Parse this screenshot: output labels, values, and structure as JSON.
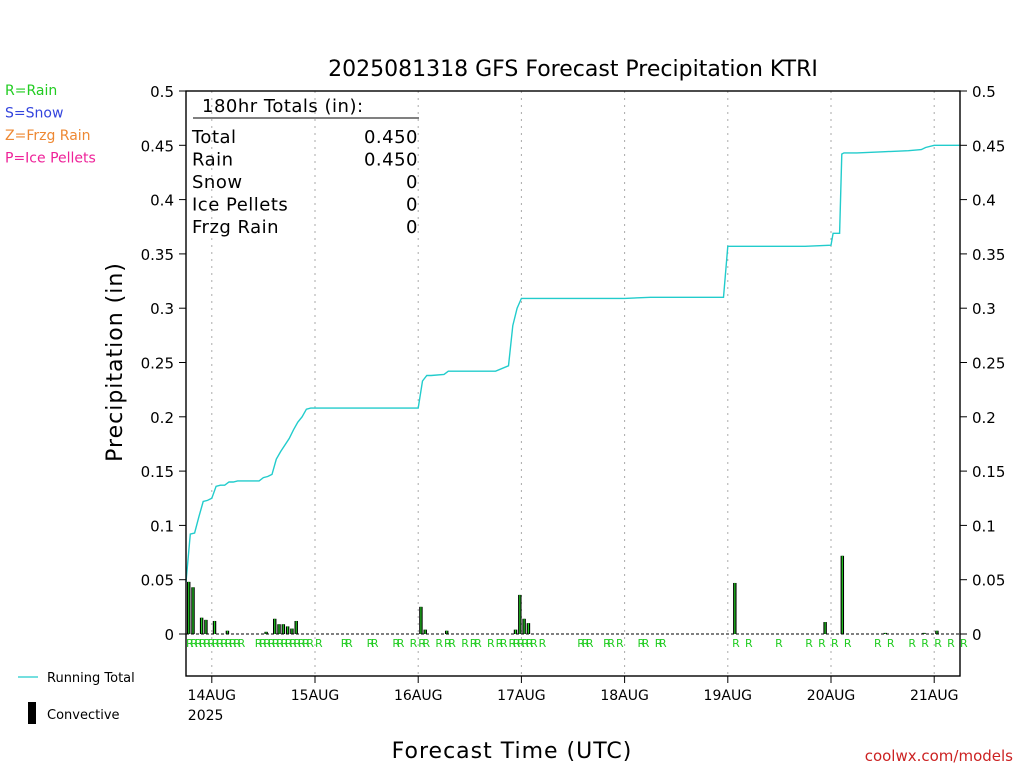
{
  "chart_data": {
    "type": "bar",
    "title": "2025081318 GFS Forecast Precipitation KTRI",
    "ylabel": "Precipitation (in)",
    "xlabel": "Forecast Time (UTC)",
    "ylim": [
      0,
      0.5
    ],
    "yticks": [
      "0",
      "0.05",
      "0.1",
      "0.15",
      "0.2",
      "0.25",
      "0.3",
      "0.35",
      "0.4",
      "0.45",
      "0.5"
    ],
    "x_unit": "forecast hour",
    "xlim": [
      0,
      180
    ],
    "xticks": [
      {
        "hour": 6,
        "label": "14AUG",
        "sub": "2025"
      },
      {
        "hour": 30,
        "label": "15AUG"
      },
      {
        "hour": 54,
        "label": "16AUG"
      },
      {
        "hour": 78,
        "label": "17AUG"
      },
      {
        "hour": 102,
        "label": "18AUG"
      },
      {
        "hour": 126,
        "label": "19AUG"
      },
      {
        "hour": 150,
        "label": "20AUG"
      },
      {
        "hour": 174,
        "label": "21AUG"
      }
    ],
    "grid": "vertical dotted",
    "type_legend": [
      {
        "label": "R=Rain",
        "color": "#22cc22"
      },
      {
        "label": "S=Snow",
        "color": "#3344dd"
      },
      {
        "label": "Z=Frzg Rain",
        "color": "#ee8833"
      },
      {
        "label": "P=Ice Pellets",
        "color": "#ee2299"
      }
    ],
    "totals": {
      "header": "180hr Totals (in):",
      "rows": [
        {
          "label": "Total",
          "value": "0.450"
        },
        {
          "label": "Rain",
          "value": "0.450"
        },
        {
          "label": "Snow",
          "value": "0"
        },
        {
          "label": "Ice Pellets",
          "value": "0"
        },
        {
          "label": "Frzg Rain",
          "value": "0"
        }
      ]
    },
    "series": [
      {
        "name": "Running Total",
        "kind": "line",
        "color": "#22cccc",
        "x": [
          0,
          1,
          2,
          3,
          4,
          5,
          6,
          7,
          8,
          9,
          10,
          11,
          12,
          17,
          18,
          19,
          20,
          21,
          22,
          24,
          25,
          26,
          27,
          28,
          29,
          30,
          31,
          42,
          48,
          54,
          55,
          56,
          57,
          60,
          61,
          66,
          72,
          75,
          76,
          77,
          78,
          79,
          80,
          84,
          90,
          96,
          102,
          108,
          114,
          120,
          125,
          126,
          127,
          138,
          144,
          150,
          150.5,
          152,
          152.5,
          153,
          156,
          162,
          168,
          171,
          172,
          174,
          180
        ],
        "values": [
          0.048,
          0.092,
          0.093,
          0.108,
          0.122,
          0.123,
          0.125,
          0.136,
          0.137,
          0.137,
          0.14,
          0.14,
          0.141,
          0.141,
          0.144,
          0.145,
          0.147,
          0.161,
          0.168,
          0.18,
          0.188,
          0.195,
          0.2,
          0.207,
          0.208,
          0.208,
          0.208,
          0.208,
          0.208,
          0.208,
          0.233,
          0.238,
          0.238,
          0.239,
          0.242,
          0.242,
          0.242,
          0.247,
          0.284,
          0.3,
          0.309,
          0.309,
          0.309,
          0.309,
          0.309,
          0.309,
          0.309,
          0.31,
          0.31,
          0.31,
          0.31,
          0.357,
          0.357,
          0.357,
          0.357,
          0.358,
          0.369,
          0.369,
          0.442,
          0.443,
          0.443,
          0.444,
          0.445,
          0.446,
          0.448,
          0.45,
          0.45
        ]
      },
      {
        "name": "Convective",
        "kind": "bar",
        "color": "#000000",
        "x": [
          0,
          1,
          3,
          4,
          6,
          9,
          18,
          20,
          21,
          22,
          23,
          24,
          25,
          54,
          55,
          60,
          76,
          77,
          78,
          79,
          127,
          148,
          152,
          162,
          171,
          174
        ],
        "values": [
          0.048,
          0.043,
          0.015,
          0.013,
          0.012,
          0.003,
          0.002,
          0.014,
          0.009,
          0.009,
          0.007,
          0.005,
          0.012,
          0.025,
          0.004,
          0.003,
          0.004,
          0.036,
          0.014,
          0.01,
          0.047,
          0.011,
          0.072,
          0.001,
          0.001,
          0.003
        ]
      }
    ],
    "precip_type_labels": {
      "text": "R",
      "hours": [
        0,
        1,
        2,
        3,
        4,
        5,
        6,
        7,
        8,
        9,
        10,
        11,
        12,
        16,
        17,
        18,
        19,
        20,
        21,
        22,
        23,
        24,
        25,
        26,
        27,
        28,
        30,
        36,
        37,
        42,
        43,
        48,
        49,
        52,
        54,
        55,
        58,
        60,
        61,
        64,
        66,
        67,
        70,
        72,
        73,
        75,
        76,
        77,
        78,
        79,
        80,
        82,
        91,
        92,
        93,
        97,
        98,
        100,
        105,
        106,
        109,
        110,
        127,
        130,
        137,
        144,
        147,
        150,
        153,
        160,
        163,
        168,
        171,
        174,
        177,
        180
      ]
    },
    "bottom_legend": [
      {
        "label": "Running Total",
        "kind": "line"
      },
      {
        "label": "Convective",
        "kind": "bar"
      }
    ]
  },
  "credit": "coolwx.com/models"
}
